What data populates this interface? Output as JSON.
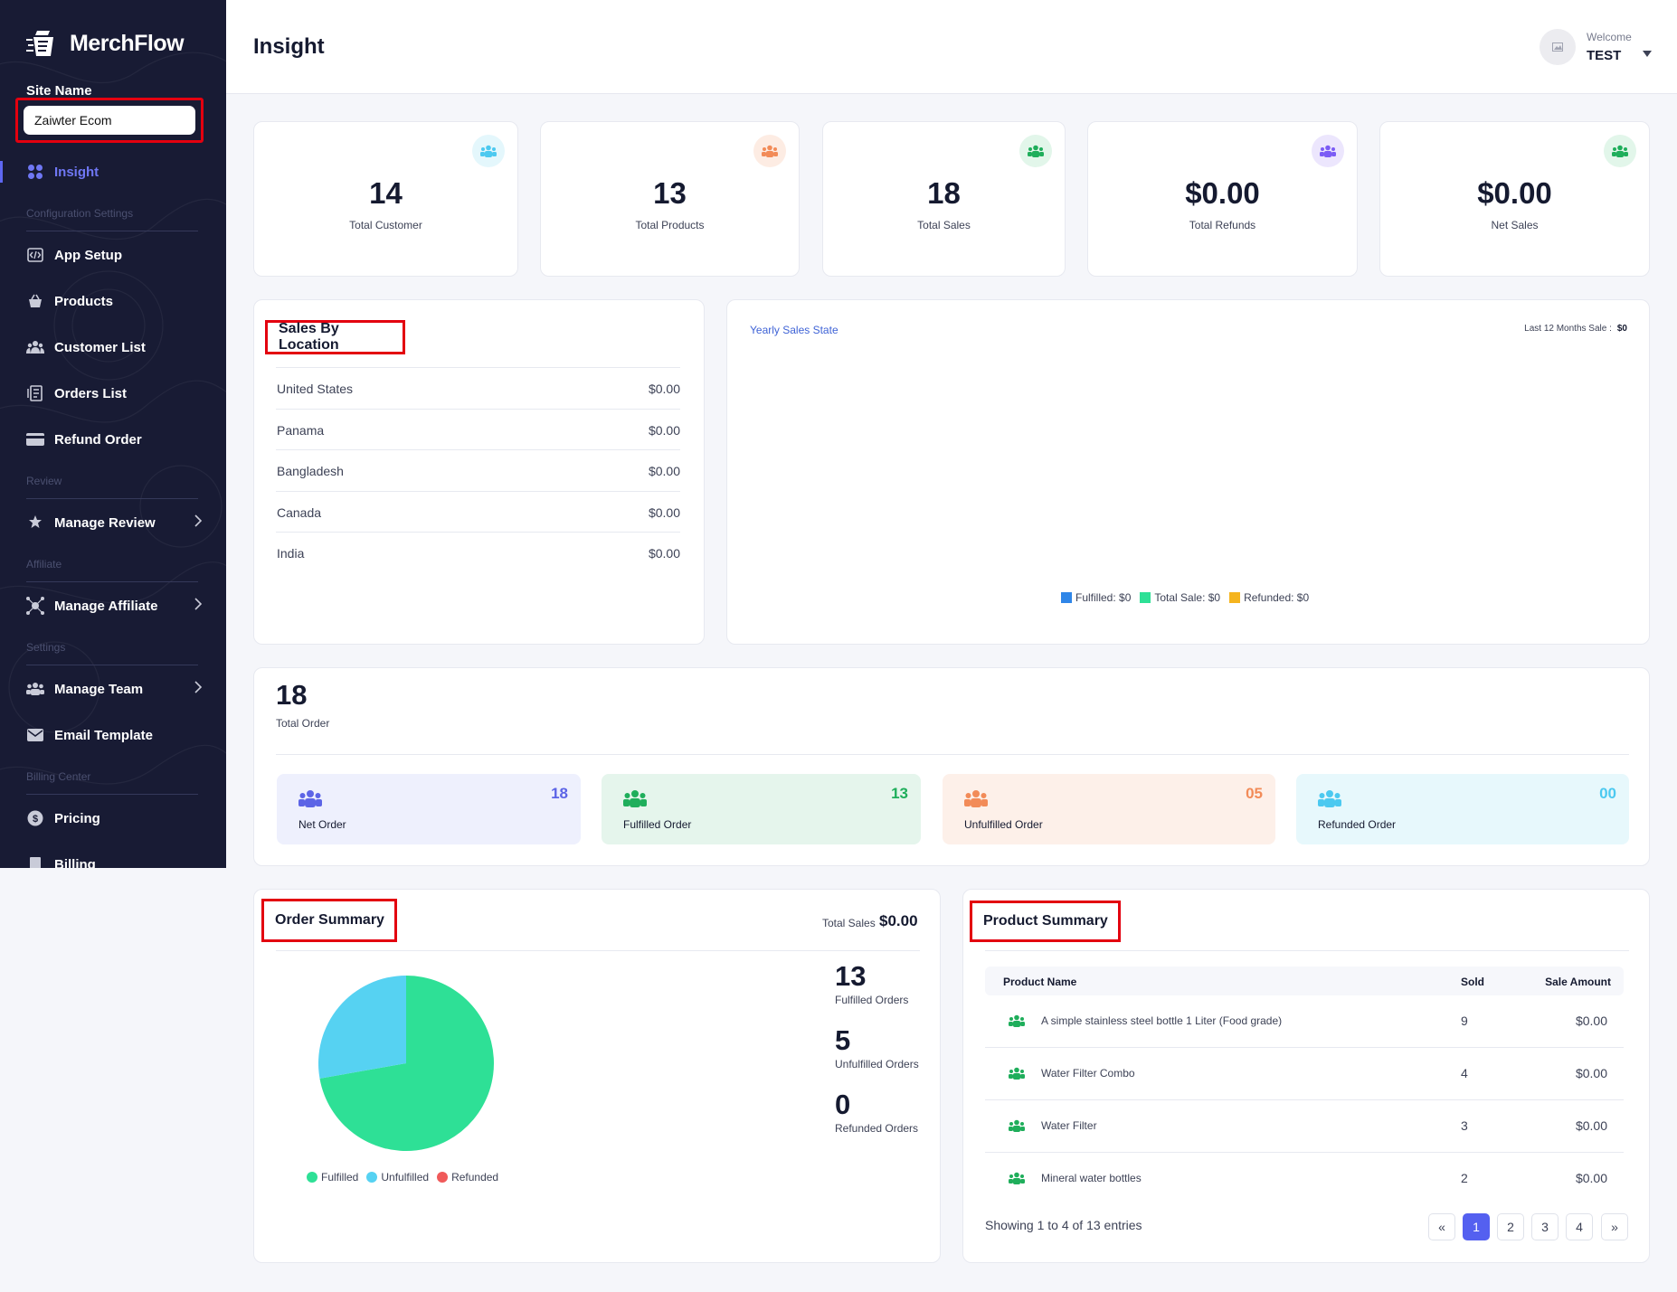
{
  "app": {
    "brand": "MerchFlow",
    "page_title": "Insight"
  },
  "sidebar": {
    "site_label": "Site Name",
    "site_value": "Zaiwter Ecom",
    "items": [
      {
        "label": "Insight"
      },
      {
        "label": "App Setup"
      },
      {
        "label": "Products"
      },
      {
        "label": "Customer List"
      },
      {
        "label": "Orders List"
      },
      {
        "label": "Refund Order"
      },
      {
        "label": "Manage Review"
      },
      {
        "label": "Manage Affiliate"
      },
      {
        "label": "Manage Team"
      },
      {
        "label": "Email Template"
      },
      {
        "label": "Pricing"
      },
      {
        "label": "Billing"
      }
    ],
    "sections": [
      "Configuration Settings",
      "Review",
      "Affiliate",
      "Settings",
      "Billing Center"
    ]
  },
  "header": {
    "welcome": "Welcome",
    "user": "TEST"
  },
  "stats": [
    {
      "value": "14",
      "label": "Total Customer",
      "color": "#4cc9f0",
      "bg": "#e4f7fc"
    },
    {
      "value": "13",
      "label": "Total Products",
      "color": "#f28b58",
      "bg": "#fdece3"
    },
    {
      "value": "18",
      "label": "Total Sales",
      "color": "#1fae5b",
      "bg": "#e2f6ea"
    },
    {
      "value": "$0.00",
      "label": "Total Refunds",
      "color": "#7b5cf5",
      "bg": "#ece6fd"
    },
    {
      "value": "$0.00",
      "label": "Net Sales",
      "color": "#1fae5b",
      "bg": "#e2f6ea"
    }
  ],
  "sales_by_location": {
    "title": "Sales By Location",
    "rows": [
      {
        "country": "United States",
        "amount": "$0.00"
      },
      {
        "country": "Panama",
        "amount": "$0.00"
      },
      {
        "country": "Bangladesh",
        "amount": "$0.00"
      },
      {
        "country": "Canada",
        "amount": "$0.00"
      },
      {
        "country": "India",
        "amount": "$0.00"
      }
    ]
  },
  "yearly": {
    "title": "Yearly Sales State",
    "last12_label": "Last 12 Months Sale :",
    "last12_value": "$0",
    "legend": [
      {
        "label": "Fulfilled: $0",
        "color": "#2f86e8"
      },
      {
        "label": "Total Sale: $0",
        "color": "#2ee096"
      },
      {
        "label": "Refunded: $0",
        "color": "#f5b41e"
      }
    ]
  },
  "orders": {
    "total": "18",
    "total_label": "Total Order",
    "cards": [
      {
        "label": "Net Order",
        "value": "18",
        "bg": "#eef0fd",
        "color": "#5c64e6",
        "icon_color": "#5c64e6"
      },
      {
        "label": "Fulfilled Order",
        "value": "13",
        "bg": "#e5f5ec",
        "color": "#1fae5b",
        "icon_color": "#1fae5b"
      },
      {
        "label": "Unfulfilled Order",
        "value": "05",
        "bg": "#fdf0e9",
        "color": "#f28b58",
        "icon_color": "#f28b58"
      },
      {
        "label": "Refunded Order",
        "value": "00",
        "bg": "#e7f8fc",
        "color": "#4cc9f0",
        "icon_color": "#4cc9f0"
      }
    ]
  },
  "order_summary": {
    "title": "Order Summary",
    "total_sales_label": "Total Sales",
    "total_sales_value": "$0.00",
    "metrics": [
      {
        "value": "13",
        "label": "Fulfilled Orders"
      },
      {
        "value": "5",
        "label": "Unfulfilled Orders"
      },
      {
        "value": "0",
        "label": "Refunded Orders"
      }
    ],
    "legend": [
      {
        "label": "Fulfilled",
        "color": "#2ee096"
      },
      {
        "label": "Unfulfilled",
        "color": "#56d2f2"
      },
      {
        "label": "Refunded",
        "color": "#f05a5a"
      }
    ]
  },
  "chart_data": {
    "type": "pie",
    "categories": [
      "Fulfilled",
      "Unfulfilled",
      "Refunded"
    ],
    "values": [
      13,
      5,
      0
    ],
    "colors": [
      "#2ee096",
      "#56d2f2",
      "#f05a5a"
    ],
    "legend": "bottom"
  },
  "product_summary": {
    "title": "Product Summary",
    "columns": [
      "Product Name",
      "Sold",
      "Sale Amount"
    ],
    "rows": [
      {
        "name": "A simple stainless steel bottle 1 Liter (Food grade)",
        "sold": "9",
        "amount": "$0.00"
      },
      {
        "name": "Water Filter Combo",
        "sold": "4",
        "amount": "$0.00"
      },
      {
        "name": "Water Filter",
        "sold": "3",
        "amount": "$0.00"
      },
      {
        "name": "Mineral water bottles",
        "sold": "2",
        "amount": "$0.00"
      }
    ],
    "showing": "Showing 1 to 4 of 13 entries",
    "pages": [
      "«",
      "1",
      "2",
      "3",
      "4",
      "»"
    ],
    "active_page": "1"
  }
}
